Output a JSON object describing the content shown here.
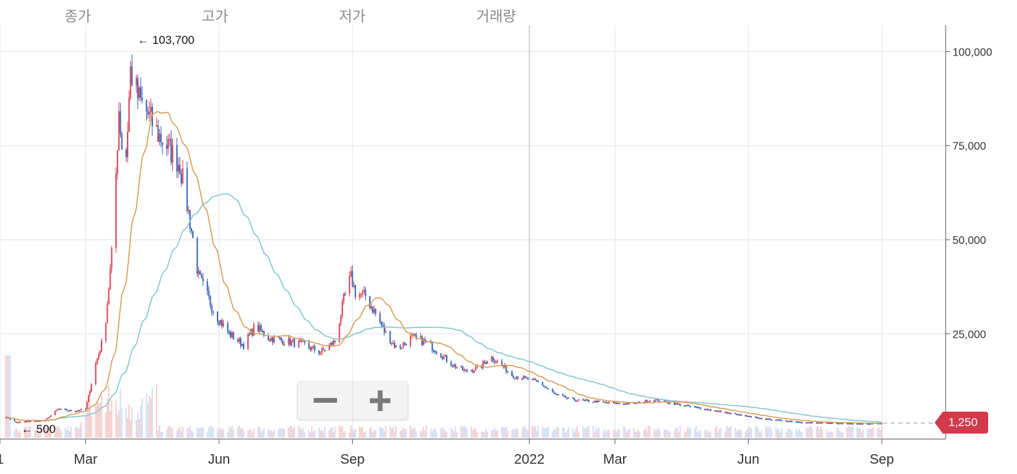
{
  "tabs": [
    "종가",
    "고가",
    "저가",
    "거래량"
  ],
  "annotations": {
    "max_label": "← 103,700",
    "min_label": "← 500"
  },
  "last_price_label": "1,250",
  "colors": {
    "up": "#d9404f",
    "down": "#3461b8",
    "ma_short": "#d9a05a",
    "ma_long": "#86c7cc",
    "vol_up": "#f4c6c4",
    "vol_down": "#cdd8f2",
    "grid": "#ececec",
    "axis": "#555555",
    "badge": "#d23a4c"
  },
  "chart_data": {
    "type": "candlestick",
    "y_ticks": [
      25000,
      50000,
      75000,
      100000
    ],
    "y_tick_labels": [
      "25,000",
      "50,000",
      "75,000",
      "100,000"
    ],
    "ylim": [
      -3000,
      107000
    ],
    "x_range": [
      "2021-01-01",
      "2022-10-15"
    ],
    "x_ticks": [
      {
        "date": "2021-01-01",
        "label": "1"
      },
      {
        "date": "2021-03-01",
        "label": "Mar"
      },
      {
        "date": "2021-06-01",
        "label": "Jun"
      },
      {
        "date": "2021-09-01",
        "label": "Sep"
      },
      {
        "date": "2022-01-01",
        "label": "2022"
      },
      {
        "date": "2022-03-01",
        "label": "Mar"
      },
      {
        "date": "2022-06-01",
        "label": "Jun"
      },
      {
        "date": "2022-09-01",
        "label": "Sep"
      }
    ],
    "max": {
      "date": "2021-04-01",
      "value": 103700
    },
    "min": {
      "date": "2021-01-10",
      "value": 500
    },
    "last_value": 1250,
    "close_series": [
      [
        "2021-01-05",
        3000
      ],
      [
        "2021-01-12",
        1500
      ],
      [
        "2021-01-20",
        1800
      ],
      [
        "2021-02-01",
        2000
      ],
      [
        "2021-02-10",
        5000
      ],
      [
        "2021-02-20",
        4500
      ],
      [
        "2021-03-01",
        5000
      ],
      [
        "2021-03-08",
        17000
      ],
      [
        "2021-03-14",
        25000
      ],
      [
        "2021-03-20",
        50000
      ],
      [
        "2021-03-24",
        85000
      ],
      [
        "2021-03-28",
        65000
      ],
      [
        "2021-04-01",
        95000
      ],
      [
        "2021-04-06",
        88000
      ],
      [
        "2021-04-12",
        84000
      ],
      [
        "2021-04-20",
        78000
      ],
      [
        "2021-04-28",
        74000
      ],
      [
        "2021-05-05",
        70000
      ],
      [
        "2021-05-12",
        55000
      ],
      [
        "2021-05-18",
        40000
      ],
      [
        "2021-05-24",
        35000
      ],
      [
        "2021-05-30",
        30000
      ],
      [
        "2021-06-08",
        25000
      ],
      [
        "2021-06-18",
        22000
      ],
      [
        "2021-06-26",
        27000
      ],
      [
        "2021-07-05",
        24000
      ],
      [
        "2021-07-18",
        23000
      ],
      [
        "2021-07-30",
        22000
      ],
      [
        "2021-08-10",
        20000
      ],
      [
        "2021-08-20",
        23000
      ],
      [
        "2021-08-26",
        34000
      ],
      [
        "2021-08-31",
        40000
      ],
      [
        "2021-09-03",
        36000
      ],
      [
        "2021-09-10",
        35000
      ],
      [
        "2021-09-16",
        31000
      ],
      [
        "2021-09-24",
        25000
      ],
      [
        "2021-10-02",
        21000
      ],
      [
        "2021-10-12",
        24000
      ],
      [
        "2021-10-20",
        23000
      ],
      [
        "2021-10-28",
        21000
      ],
      [
        "2021-11-08",
        17000
      ],
      [
        "2021-11-18",
        15000
      ],
      [
        "2021-11-28",
        16000
      ],
      [
        "2021-12-05",
        19000
      ],
      [
        "2021-12-12",
        17000
      ],
      [
        "2021-12-20",
        14000
      ],
      [
        "2021-12-30",
        13000
      ],
      [
        "2022-01-08",
        12000
      ],
      [
        "2022-01-18",
        9000
      ],
      [
        "2022-01-30",
        7500
      ],
      [
        "2022-02-15",
        7000
      ],
      [
        "2022-03-01",
        6500
      ],
      [
        "2022-03-15",
        6500
      ],
      [
        "2022-03-28",
        7500
      ],
      [
        "2022-04-10",
        6500
      ],
      [
        "2022-04-25",
        5500
      ],
      [
        "2022-05-10",
        4500
      ],
      [
        "2022-05-25",
        3500
      ],
      [
        "2022-06-10",
        2500
      ],
      [
        "2022-06-25",
        2000
      ],
      [
        "2022-07-10",
        1500
      ],
      [
        "2022-07-30",
        1300
      ],
      [
        "2022-08-20",
        1200
      ],
      [
        "2022-09-01",
        1250
      ]
    ]
  }
}
